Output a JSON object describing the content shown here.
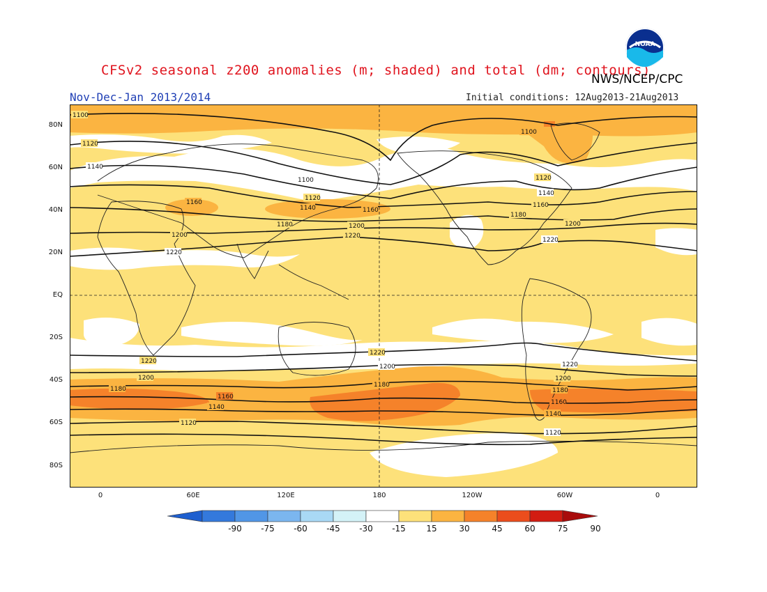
{
  "header": {
    "title": "CFSv2 seasonal z200 anomalies (m; shaded) and total (dm; contours)",
    "agency": "NWS/NCEP/CPC",
    "season": "Nov-Dec-Jan 2013/2014",
    "initial_conditions": "Initial conditions: 12Aug2013-21Aug2013"
  },
  "logo": {
    "text": "NOAA",
    "icon": "noaa-logo-icon"
  },
  "axes": {
    "lat_ticks": [
      "80N",
      "60N",
      "40N",
      "20N",
      "EQ",
      "20S",
      "40S",
      "60S",
      "80S"
    ],
    "lon_ticks": [
      "0",
      "60E",
      "120E",
      "180",
      "120W",
      "60W",
      "0"
    ]
  },
  "contour_labels": [
    "1100",
    "1120",
    "1140",
    "1160",
    "1180",
    "1200",
    "1220"
  ],
  "colorbar": {
    "labels": [
      "-90",
      "-75",
      "-60",
      "-45",
      "-30",
      "-15",
      "15",
      "30",
      "45",
      "60",
      "75",
      "90"
    ],
    "colors": [
      "#1e5fcf",
      "#3479dc",
      "#5196e6",
      "#7bb6ef",
      "#a9d9f5",
      "#d4f2f7",
      "#ffffff",
      "#fde17a",
      "#fbb441",
      "#f5822a",
      "#eb4d1c",
      "#d21c12",
      "#a80c0c"
    ]
  },
  "chart_data": {
    "type": "heatmap",
    "variable": "z200",
    "xlabel": "",
    "ylabel": "",
    "x_ticks": [
      "0",
      "60E",
      "120E",
      "180",
      "120W",
      "60W",
      "0"
    ],
    "y_ticks": [
      "80N",
      "60N",
      "40N",
      "20N",
      "EQ",
      "20S",
      "40S",
      "60S",
      "80S"
    ],
    "contour_values_dm": [
      1100,
      1120,
      1140,
      1160,
      1180,
      1200,
      1220
    ],
    "colorbar_levels": [
      -90,
      -75,
      -60,
      -45,
      -30,
      -15,
      15,
      30,
      45,
      60,
      75,
      90
    ]
  }
}
